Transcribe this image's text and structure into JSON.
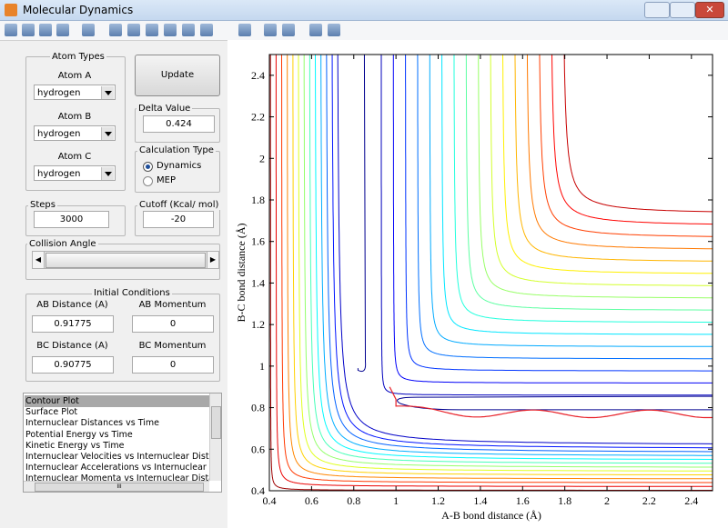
{
  "window": {
    "title": "Molecular Dynamics"
  },
  "atom_types": {
    "title": "Atom Types",
    "atoms": [
      {
        "label": "Atom A",
        "value": "hydrogen"
      },
      {
        "label": "Atom B",
        "value": "hydrogen"
      },
      {
        "label": "Atom C",
        "value": "hydrogen"
      }
    ]
  },
  "update_button": "Update",
  "delta": {
    "title": "Delta Value",
    "value": "0.424"
  },
  "calculation_type": {
    "title": "Calculation Type",
    "options": [
      "Dynamics",
      "MEP"
    ]
  },
  "steps": {
    "title": "Steps",
    "value": "3000"
  },
  "cutoff": {
    "title": "Cutoff (Kcal/ mol)",
    "value": "-20"
  },
  "collision_angle": {
    "title": "Collision Angle"
  },
  "initial_conditions": {
    "title": "Initial Conditions",
    "fields": [
      {
        "label": "AB Distance (A)",
        "value": "0.91775"
      },
      {
        "label": "AB Momentum",
        "value": "0"
      },
      {
        "label": "BC Distance (A)",
        "value": "0.90775"
      },
      {
        "label": "BC Momentum",
        "value": "0"
      }
    ]
  },
  "plot_list": {
    "items": [
      "Contour Plot",
      "Surface Plot",
      "Internuclear Distances vs Time",
      "Potential Energy vs Time",
      "Kinetic Energy vs Time",
      "Internuclear Velocities vs Internuclear Distance",
      "Internuclear Accelerations vs Internuclear Dista",
      "Internuclear Momenta vs Internuclear Distance"
    ],
    "scrollbar_label": "III"
  },
  "chart_data": {
    "type": "contour",
    "xlabel": "A-B bond distance (Å)",
    "ylabel": "B-C bond distance (Å)",
    "xlim": [
      0.4,
      2.5
    ],
    "ylim": [
      0.4,
      2.5
    ],
    "xticks": [
      0.4,
      0.6,
      0.8,
      1,
      1.2,
      1.4,
      1.6,
      1.8,
      2,
      2.2,
      2.4
    ],
    "yticks": [
      0.4,
      0.6,
      0.8,
      1,
      1.2,
      1.4,
      1.6,
      1.8,
      2,
      2.2,
      2.4
    ]
  }
}
